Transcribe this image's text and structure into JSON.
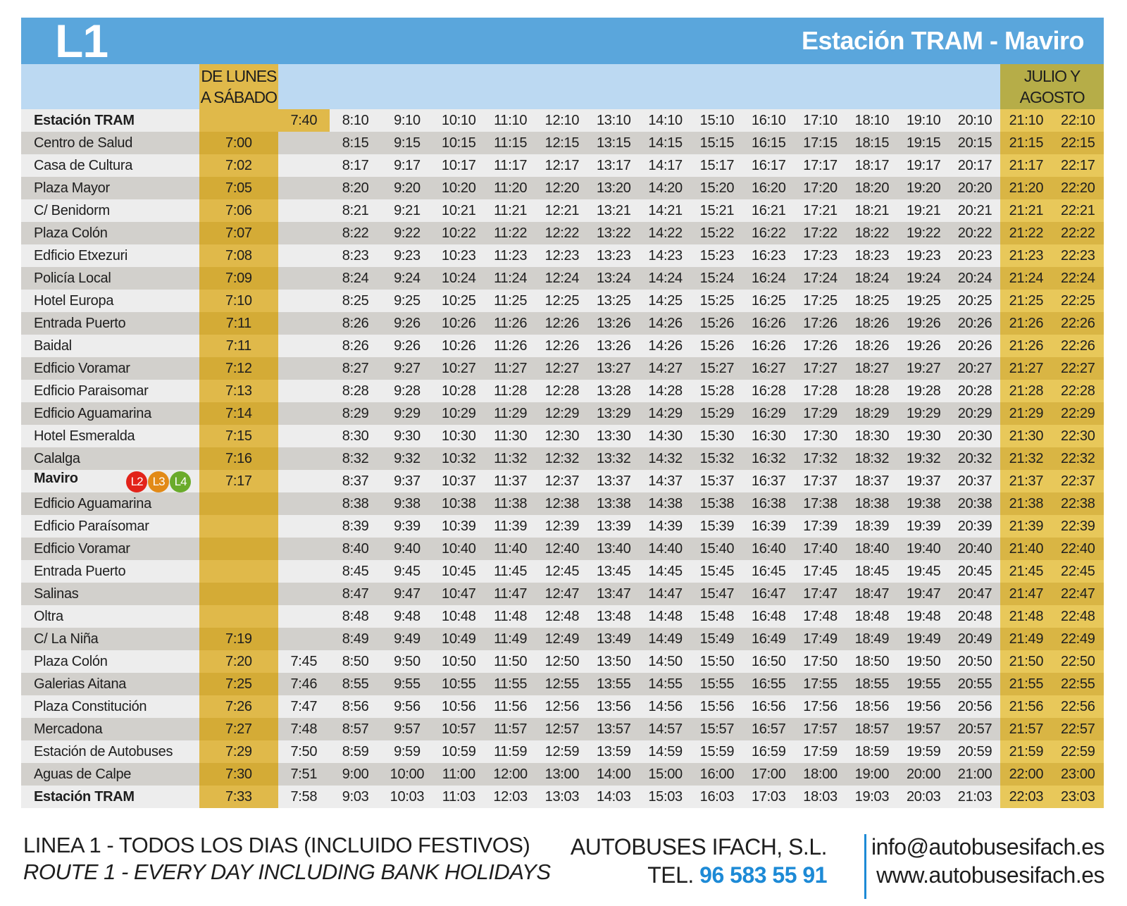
{
  "header": {
    "line_code": "L1",
    "route_name": "Estación TRAM - Maviro",
    "weekday_label": [
      "DE LUNES",
      "A SÁBADO"
    ],
    "summer_label": [
      "JULIO Y",
      "AGOSTO"
    ]
  },
  "badges": [
    {
      "label": "L2",
      "color": "#e2231a"
    },
    {
      "label": "L3",
      "color": "#e28a17"
    },
    {
      "label": "L4",
      "color": "#6aab2b"
    }
  ],
  "stops": [
    {
      "name": "Estación TRAM",
      "bold": true,
      "times": [
        "",
        "7:40",
        "8:10",
        "9:10",
        "10:10",
        "11:10",
        "12:10",
        "13:10",
        "14:10",
        "15:10",
        "16:10",
        "17:10",
        "18:10",
        "19:10",
        "20:10",
        "21:10",
        "22:10"
      ]
    },
    {
      "name": "Centro de Salud",
      "times": [
        "7:00",
        "",
        "8:15",
        "9:15",
        "10:15",
        "11:15",
        "12:15",
        "13:15",
        "14:15",
        "15:15",
        "16:15",
        "17:15",
        "18:15",
        "19:15",
        "20:15",
        "21:15",
        "22:15"
      ]
    },
    {
      "name": "Casa de Cultura",
      "times": [
        "7:02",
        "",
        "8:17",
        "9:17",
        "10:17",
        "11:17",
        "12:17",
        "13:17",
        "14:17",
        "15:17",
        "16:17",
        "17:17",
        "18:17",
        "19:17",
        "20:17",
        "21:17",
        "22:17"
      ]
    },
    {
      "name": "Plaza Mayor",
      "times": [
        "7:05",
        "",
        "8:20",
        "9:20",
        "10:20",
        "11:20",
        "12:20",
        "13:20",
        "14:20",
        "15:20",
        "16:20",
        "17:20",
        "18:20",
        "19:20",
        "20:20",
        "21:20",
        "22:20"
      ]
    },
    {
      "name": "C/ Benidorm",
      "times": [
        "7:06",
        "",
        "8:21",
        "9:21",
        "10:21",
        "11:21",
        "12:21",
        "13:21",
        "14:21",
        "15:21",
        "16:21",
        "17:21",
        "18:21",
        "19:21",
        "20:21",
        "21:21",
        "22:21"
      ]
    },
    {
      "name": "Plaza Colón",
      "times": [
        "7:07",
        "",
        "8:22",
        "9:22",
        "10:22",
        "11:22",
        "12:22",
        "13:22",
        "14:22",
        "15:22",
        "16:22",
        "17:22",
        "18:22",
        "19:22",
        "20:22",
        "21:22",
        "22:22"
      ]
    },
    {
      "name": "Edficio Etxezuri",
      "times": [
        "7:08",
        "",
        "8:23",
        "9:23",
        "10:23",
        "11:23",
        "12:23",
        "13:23",
        "14:23",
        "15:23",
        "16:23",
        "17:23",
        "18:23",
        "19:23",
        "20:23",
        "21:23",
        "22:23"
      ]
    },
    {
      "name": "Policía Local",
      "times": [
        "7:09",
        "",
        "8:24",
        "9:24",
        "10:24",
        "11:24",
        "12:24",
        "13:24",
        "14:24",
        "15:24",
        "16:24",
        "17:24",
        "18:24",
        "19:24",
        "20:24",
        "21:24",
        "22:24"
      ]
    },
    {
      "name": "Hotel Europa",
      "times": [
        "7:10",
        "",
        "8:25",
        "9:25",
        "10:25",
        "11:25",
        "12:25",
        "13:25",
        "14:25",
        "15:25",
        "16:25",
        "17:25",
        "18:25",
        "19:25",
        "20:25",
        "21:25",
        "22:25"
      ]
    },
    {
      "name": "Entrada Puerto",
      "times": [
        "7:11",
        "",
        "8:26",
        "9:26",
        "10:26",
        "11:26",
        "12:26",
        "13:26",
        "14:26",
        "15:26",
        "16:26",
        "17:26",
        "18:26",
        "19:26",
        "20:26",
        "21:26",
        "22:26"
      ]
    },
    {
      "name": "Baidal",
      "times": [
        "7:11",
        "",
        "8:26",
        "9:26",
        "10:26",
        "11:26",
        "12:26",
        "13:26",
        "14:26",
        "15:26",
        "16:26",
        "17:26",
        "18:26",
        "19:26",
        "20:26",
        "21:26",
        "22:26"
      ]
    },
    {
      "name": "Edficio Voramar",
      "times": [
        "7:12",
        "",
        "8:27",
        "9:27",
        "10:27",
        "11:27",
        "12:27",
        "13:27",
        "14:27",
        "15:27",
        "16:27",
        "17:27",
        "18:27",
        "19:27",
        "20:27",
        "21:27",
        "22:27"
      ]
    },
    {
      "name": "Edficio Paraisomar",
      "times": [
        "7:13",
        "",
        "8:28",
        "9:28",
        "10:28",
        "11:28",
        "12:28",
        "13:28",
        "14:28",
        "15:28",
        "16:28",
        "17:28",
        "18:28",
        "19:28",
        "20:28",
        "21:28",
        "22:28"
      ]
    },
    {
      "name": "Edficio Aguamarina",
      "times": [
        "7:14",
        "",
        "8:29",
        "9:29",
        "10:29",
        "11:29",
        "12:29",
        "13:29",
        "14:29",
        "15:29",
        "16:29",
        "17:29",
        "18:29",
        "19:29",
        "20:29",
        "21:29",
        "22:29"
      ]
    },
    {
      "name": "Hotel Esmeralda",
      "times": [
        "7:15",
        "",
        "8:30",
        "9:30",
        "10:30",
        "11:30",
        "12:30",
        "13:30",
        "14:30",
        "15:30",
        "16:30",
        "17:30",
        "18:30",
        "19:30",
        "20:30",
        "21:30",
        "22:30"
      ]
    },
    {
      "name": "Calalga",
      "times": [
        "7:16",
        "",
        "8:32",
        "9:32",
        "10:32",
        "11:32",
        "12:32",
        "13:32",
        "14:32",
        "15:32",
        "16:32",
        "17:32",
        "18:32",
        "19:32",
        "20:32",
        "21:32",
        "22:32"
      ]
    },
    {
      "name": "Maviro",
      "bold": true,
      "badges": true,
      "times": [
        "7:17",
        "",
        "8:37",
        "9:37",
        "10:37",
        "11:37",
        "12:37",
        "13:37",
        "14:37",
        "15:37",
        "16:37",
        "17:37",
        "18:37",
        "19:37",
        "20:37",
        "21:37",
        "22:37"
      ]
    },
    {
      "name": "Edficio Aguamarina",
      "times": [
        "",
        "",
        "8:38",
        "9:38",
        "10:38",
        "11:38",
        "12:38",
        "13:38",
        "14:38",
        "15:38",
        "16:38",
        "17:38",
        "18:38",
        "19:38",
        "20:38",
        "21:38",
        "22:38"
      ]
    },
    {
      "name": "Edficio Paraísomar",
      "times": [
        "",
        "",
        "8:39",
        "9:39",
        "10:39",
        "11:39",
        "12:39",
        "13:39",
        "14:39",
        "15:39",
        "16:39",
        "17:39",
        "18:39",
        "19:39",
        "20:39",
        "21:39",
        "22:39"
      ]
    },
    {
      "name": "Edficio Voramar",
      "times": [
        "",
        "",
        "8:40",
        "9:40",
        "10:40",
        "11:40",
        "12:40",
        "13:40",
        "14:40",
        "15:40",
        "16:40",
        "17:40",
        "18:40",
        "19:40",
        "20:40",
        "21:40",
        "22:40"
      ]
    },
    {
      "name": "Entrada Puerto",
      "times": [
        "",
        "",
        "8:45",
        "9:45",
        "10:45",
        "11:45",
        "12:45",
        "13:45",
        "14:45",
        "15:45",
        "16:45",
        "17:45",
        "18:45",
        "19:45",
        "20:45",
        "21:45",
        "22:45"
      ]
    },
    {
      "name": "Salinas",
      "times": [
        "",
        "",
        "8:47",
        "9:47",
        "10:47",
        "11:47",
        "12:47",
        "13:47",
        "14:47",
        "15:47",
        "16:47",
        "17:47",
        "18:47",
        "19:47",
        "20:47",
        "21:47",
        "22:47"
      ]
    },
    {
      "name": "Oltra",
      "times": [
        "",
        "",
        "8:48",
        "9:48",
        "10:48",
        "11:48",
        "12:48",
        "13:48",
        "14:48",
        "15:48",
        "16:48",
        "17:48",
        "18:48",
        "19:48",
        "20:48",
        "21:48",
        "22:48"
      ]
    },
    {
      "name": "C/ La Niña",
      "times": [
        "7:19",
        "",
        "8:49",
        "9:49",
        "10:49",
        "11:49",
        "12:49",
        "13:49",
        "14:49",
        "15:49",
        "16:49",
        "17:49",
        "18:49",
        "19:49",
        "20:49",
        "21:49",
        "22:49"
      ]
    },
    {
      "name": "Plaza Colón",
      "times": [
        "7:20",
        "7:45",
        "8:50",
        "9:50",
        "10:50",
        "11:50",
        "12:50",
        "13:50",
        "14:50",
        "15:50",
        "16:50",
        "17:50",
        "18:50",
        "19:50",
        "20:50",
        "21:50",
        "22:50"
      ]
    },
    {
      "name": "Galerias Aitana",
      "times": [
        "7:25",
        "7:46",
        "8:55",
        "9:55",
        "10:55",
        "11:55",
        "12:55",
        "13:55",
        "14:55",
        "15:55",
        "16:55",
        "17:55",
        "18:55",
        "19:55",
        "20:55",
        "21:55",
        "22:55"
      ]
    },
    {
      "name": "Plaza Constitución",
      "times": [
        "7:26",
        "7:47",
        "8:56",
        "9:56",
        "10:56",
        "11:56",
        "12:56",
        "13:56",
        "14:56",
        "15:56",
        "16:56",
        "17:56",
        "18:56",
        "19:56",
        "20:56",
        "21:56",
        "22:56"
      ]
    },
    {
      "name": "Mercadona",
      "times": [
        "7:27",
        "7:48",
        "8:57",
        "9:57",
        "10:57",
        "11:57",
        "12:57",
        "13:57",
        "14:57",
        "15:57",
        "16:57",
        "17:57",
        "18:57",
        "19:57",
        "20:57",
        "21:57",
        "22:57"
      ]
    },
    {
      "name": "Estación de Autobuses",
      "times": [
        "7:29",
        "7:50",
        "8:59",
        "9:59",
        "10:59",
        "11:59",
        "12:59",
        "13:59",
        "14:59",
        "15:59",
        "16:59",
        "17:59",
        "18:59",
        "19:59",
        "20:59",
        "21:59",
        "22:59"
      ]
    },
    {
      "name": "Aguas de Calpe",
      "times": [
        "7:30",
        "7:51",
        "9:00",
        "10:00",
        "11:00",
        "12:00",
        "13:00",
        "14:00",
        "15:00",
        "16:00",
        "17:00",
        "18:00",
        "19:00",
        "20:00",
        "21:00",
        "22:00",
        "23:00"
      ]
    },
    {
      "name": "Estación TRAM",
      "bold": true,
      "times": [
        "7:33",
        "7:58",
        "9:03",
        "10:03",
        "11:03",
        "12:03",
        "13:03",
        "14:03",
        "15:03",
        "16:03",
        "17:03",
        "18:03",
        "19:03",
        "20:03",
        "21:03",
        "22:03",
        "23:03"
      ]
    }
  ],
  "footer": {
    "line_es": "LINEA 1 - TODOS LOS DIAS  (INCLUIDO FESTIVOS)",
    "line_en": "ROUTE 1 - EVERY DAY  INCLUDING BANK HOLIDAYS",
    "company": "AUTOBUSES IFACH, S.L.",
    "phone_label": "TEL.",
    "phone_number": "96 583 55 91",
    "email": "info@autobusesifach.es",
    "website": "www.autobusesifach.es"
  },
  "colors": {
    "title_bar": "#5aa6dc",
    "header_row": "#bcd9f2",
    "weekday_column": "#e0b94a",
    "summer_header": "#b6ad48",
    "phone_accent": "#1d8ad6"
  }
}
